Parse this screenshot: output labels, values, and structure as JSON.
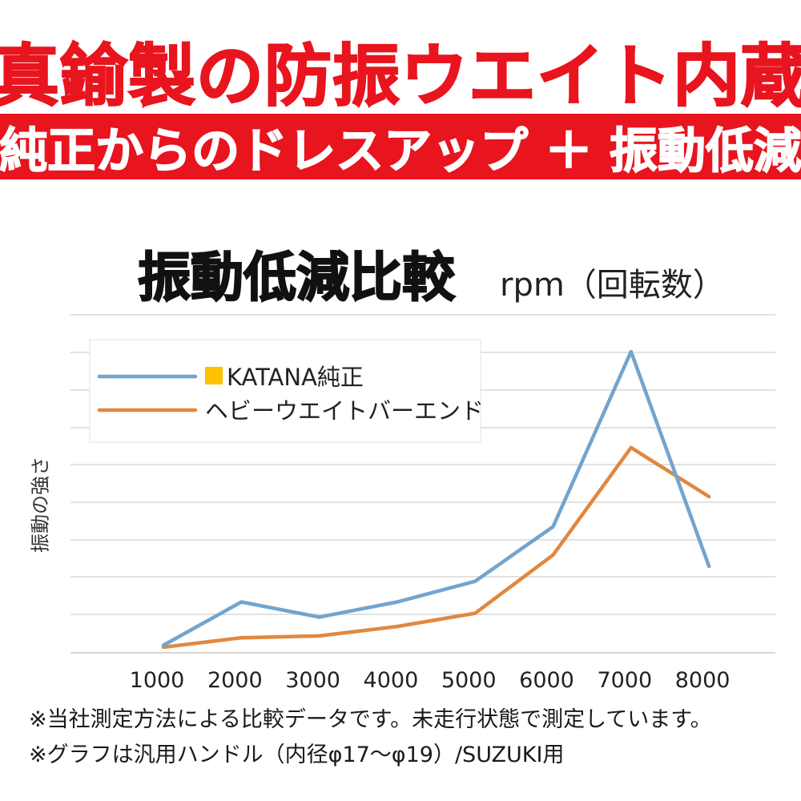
{
  "header": {
    "headline": "真鍮製の防振ウエイト内蔵",
    "banner": "純正からのドレスアップ ＋ 振動低減"
  },
  "colors": {
    "brand_red": "#e8141e",
    "series_stock": "#72a4ce",
    "series_heavy": "#e1883f",
    "legend_swatch": "#ffc000",
    "grid": "#d0d0d0"
  },
  "chart_data": {
    "type": "line",
    "title": "振動低減比較",
    "subtitle": "rpm（回転数）",
    "xlabel": "",
    "ylabel": "振動の強さ",
    "categories": [
      "1000",
      "2000",
      "3000",
      "4000",
      "5000",
      "6000",
      "7000",
      "8000"
    ],
    "ylim": [
      0,
      8
    ],
    "yticks_labeled": false,
    "grid": true,
    "legend_position": "top-left",
    "series": [
      {
        "name": "KATANA純正",
        "color": "#72a4ce",
        "values": [
          0.2,
          1.35,
          0.95,
          1.35,
          1.9,
          3.35,
          8.0,
          2.3
        ]
      },
      {
        "name": "ヘビーウエイトバーエンド",
        "color": "#e1883f",
        "values": [
          0.15,
          0.4,
          0.45,
          0.7,
          1.05,
          2.6,
          5.45,
          4.15
        ]
      }
    ]
  },
  "notes": [
    "※当社測定方法による比較データです。未走行状態で測定しています。",
    "※グラフは汎用ハンドル（内径φ17〜φ19）/SUZUKI用"
  ]
}
